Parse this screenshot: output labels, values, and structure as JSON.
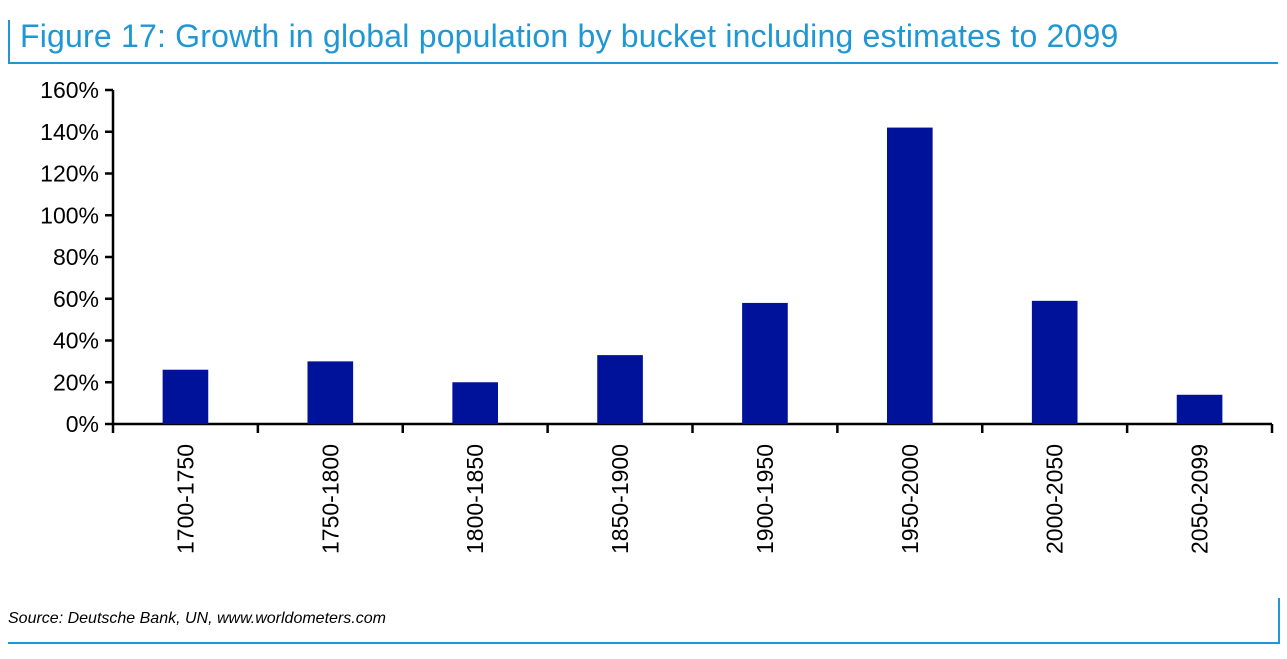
{
  "colors": {
    "accent": "#1f97d4",
    "bar": "#00129a",
    "axis": "#000000"
  },
  "header": {
    "title": "Figure 17: Growth in global population by bucket including estimates to 2099"
  },
  "footer": {
    "source": "Source: Deutsche Bank, UN, www.worldometers.com"
  },
  "chart_data": {
    "type": "bar",
    "title": "Figure 17: Growth in global population by bucket including estimates to 2099",
    "categories": [
      "1700-1750",
      "1750-1800",
      "1800-1850",
      "1850-1900",
      "1900-1950",
      "1950-2000",
      "2000-2050",
      "2050-2099"
    ],
    "values": [
      26,
      30,
      20,
      33,
      58,
      142,
      59,
      14
    ],
    "ylim": [
      0,
      160
    ],
    "yticks": [
      0,
      20,
      40,
      60,
      80,
      100,
      120,
      140,
      160
    ],
    "yticklabels": [
      "0%",
      "20%",
      "40%",
      "60%",
      "80%",
      "100%",
      "120%",
      "140%",
      "160%"
    ],
    "xlabel": "",
    "ylabel": "",
    "grid": false,
    "legend": "none"
  }
}
